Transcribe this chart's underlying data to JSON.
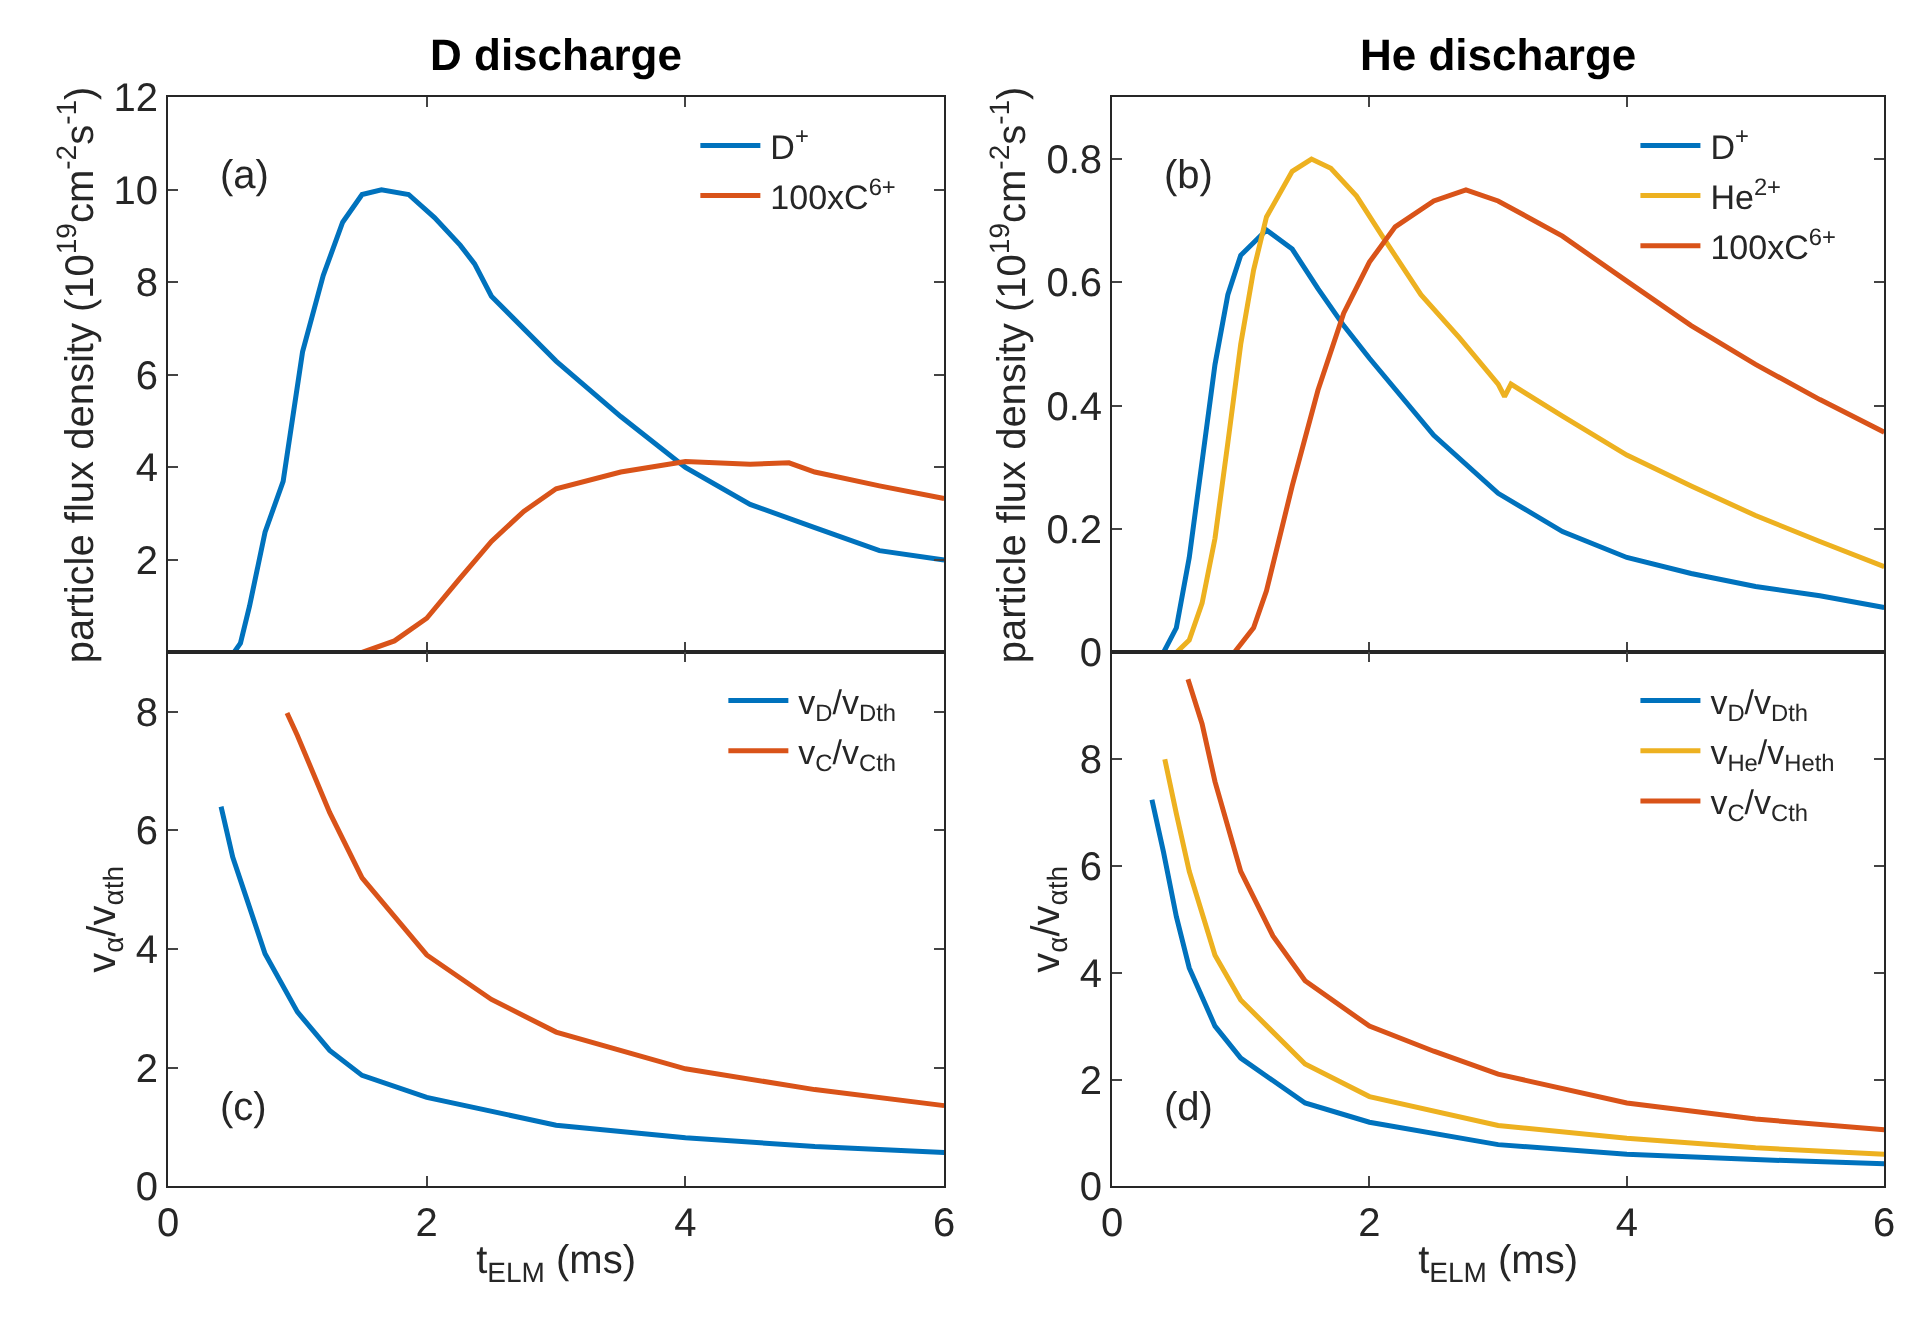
{
  "chart_data": [
    {
      "type": "line",
      "title": "D discharge",
      "ylabel": "particle flux density (10$^{19}$cm$^{-2}$s$^{-1}$)",
      "annotations": [
        "(a)"
      ],
      "xlim": [
        0,
        6
      ],
      "xticks": [
        0,
        2,
        4,
        6
      ],
      "ylim": [
        0,
        12
      ],
      "yticks": [
        2,
        4,
        6,
        8,
        10,
        12
      ],
      "tick_labels": "y",
      "legend": "top right",
      "series": [
        {
          "name": "D$^{+}$",
          "color": "#0072bd",
          "x": [
            0,
            0.51,
            0.56,
            0.63,
            0.75,
            0.89,
            1.04,
            1.2,
            1.35,
            1.5,
            1.65,
            1.86,
            2.06,
            2.26,
            2.37,
            2.5,
            3.0,
            3.5,
            4.0,
            4.5,
            5.0,
            5.5,
            6.0
          ],
          "values": [
            0,
            0,
            0.2,
            1.0,
            2.6,
            3.7,
            6.5,
            8.15,
            9.3,
            9.9,
            10.0,
            9.9,
            9.4,
            8.8,
            8.4,
            7.7,
            6.3,
            5.1,
            4.0,
            3.2,
            2.7,
            2.2,
            2.0
          ]
        },
        {
          "name": "100xC$^{6+}$",
          "color": "#d95319",
          "x": [
            0,
            1.5,
            1.75,
            2.0,
            2.25,
            2.5,
            2.75,
            3.0,
            3.5,
            4.0,
            4.5,
            4.8,
            5.0,
            5.5,
            6.0
          ],
          "values": [
            0,
            0,
            0.25,
            0.74,
            1.58,
            2.4,
            3.05,
            3.54,
            3.9,
            4.13,
            4.07,
            4.1,
            3.9,
            3.6,
            3.33
          ]
        }
      ]
    },
    {
      "type": "line",
      "title": "He discharge",
      "ylabel": "particle flux density (10$^{19}$cm$^{-2}$s$^{-1}$)",
      "annotations": [
        "(b)"
      ],
      "xlim": [
        0,
        6
      ],
      "xticks": [
        0,
        2,
        4,
        6
      ],
      "ylim": [
        0,
        0.9
      ],
      "yticks": [
        0,
        0.2,
        0.4,
        0.6,
        0.8
      ],
      "tick_labels": "y",
      "legend": "top right",
      "series": [
        {
          "name": "D$^{+}$",
          "color": "#0072bd",
          "x": [
            0,
            0.4,
            0.5,
            0.6,
            0.7,
            0.8,
            0.9,
            1.0,
            1.2,
            1.4,
            1.6,
            1.8,
            2.0,
            2.5,
            3.0,
            3.5,
            4.0,
            4.5,
            5.0,
            5.5,
            6.0
          ],
          "values": [
            0,
            0,
            0.04,
            0.154,
            0.31,
            0.467,
            0.58,
            0.644,
            0.685,
            0.654,
            0.59,
            0.53,
            0.477,
            0.352,
            0.258,
            0.196,
            0.154,
            0.128,
            0.107,
            0.092,
            0.073
          ]
        },
        {
          "name": "He$^{2+}$",
          "color": "#edb120",
          "x": [
            0,
            0.5,
            0.6,
            0.7,
            0.8,
            0.9,
            1.0,
            1.1,
            1.2,
            1.4,
            1.55,
            1.7,
            1.9,
            2.1,
            2.4,
            2.7,
            3.0,
            3.05,
            3.1,
            3.5,
            4.0,
            4.5,
            5.0,
            5.5,
            6.0
          ],
          "values": [
            0,
            0,
            0.02,
            0.08,
            0.185,
            0.34,
            0.5,
            0.62,
            0.706,
            0.78,
            0.8,
            0.785,
            0.74,
            0.675,
            0.58,
            0.51,
            0.435,
            0.415,
            0.435,
            0.383,
            0.32,
            0.27,
            0.222,
            0.18,
            0.139
          ]
        },
        {
          "name": "100xC$^{6+}$",
          "color": "#d95319",
          "x": [
            0,
            0.95,
            1.1,
            1.2,
            1.4,
            1.6,
            1.8,
            2.0,
            2.2,
            2.5,
            2.75,
            3.0,
            3.5,
            4.0,
            4.5,
            5.0,
            5.5,
            6.0
          ],
          "values": [
            0,
            0,
            0.04,
            0.1,
            0.27,
            0.425,
            0.55,
            0.633,
            0.69,
            0.732,
            0.75,
            0.732,
            0.675,
            0.602,
            0.53,
            0.467,
            0.41,
            0.357
          ]
        }
      ]
    },
    {
      "type": "line",
      "xlabel": "t$_{ELM}$ (ms)",
      "ylabel": "v$_{α}$/v$_{αth}$",
      "annotations": [
        "(c)"
      ],
      "xlim": [
        0,
        6
      ],
      "xticks": [
        0,
        2,
        4,
        6
      ],
      "ylim": [
        0,
        9
      ],
      "yticks": [
        0,
        2,
        4,
        6,
        8
      ],
      "legend": "top right",
      "series": [
        {
          "name": "v$_{D}$/v$_{Dth}$",
          "color": "#0072bd",
          "x": [
            0.41,
            0.5,
            0.6,
            0.75,
            1.0,
            1.25,
            1.5,
            2.0,
            3.0,
            4.0,
            5.0,
            6.0
          ],
          "values": [
            6.4,
            5.55,
            4.9,
            3.92,
            2.94,
            2.29,
            1.87,
            1.5,
            1.03,
            0.82,
            0.67,
            0.57
          ]
        },
        {
          "name": "v$_{C}$/v$_{Cth}$",
          "color": "#d95319",
          "x": [
            0.92,
            1.0,
            1.25,
            1.5,
            2.0,
            2.5,
            3.0,
            4.0,
            5.0,
            6.0
          ],
          "values": [
            7.98,
            7.6,
            6.3,
            5.2,
            3.9,
            3.15,
            2.6,
            1.98,
            1.63,
            1.36
          ]
        }
      ]
    },
    {
      "type": "line",
      "xlabel": "t$_{ELM}$ (ms)",
      "ylabel": "v$_{α}$/v$_{αth}$",
      "annotations": [
        "(d)"
      ],
      "xlim": [
        0,
        6
      ],
      "xticks": [
        0,
        2,
        4,
        6
      ],
      "ylim": [
        0,
        10
      ],
      "yticks": [
        0,
        2,
        4,
        6,
        8
      ],
      "legend": "top right",
      "series": [
        {
          "name": "v$_{D}$/v$_{Dth}$",
          "color": "#0072bd",
          "x": [
            0.31,
            0.4,
            0.5,
            0.6,
            0.8,
            1.0,
            1.5,
            2.0,
            3.0,
            4.0,
            5.0,
            6.0
          ],
          "values": [
            7.24,
            6.26,
            5.05,
            4.09,
            3.0,
            2.4,
            1.56,
            1.2,
            0.78,
            0.6,
            0.5,
            0.42
          ]
        },
        {
          "name": "v$_{He}$/v$_{Heth}$",
          "color": "#edb120",
          "x": [
            0.41,
            0.5,
            0.6,
            0.8,
            1.0,
            1.5,
            2.0,
            3.0,
            4.0,
            5.0,
            6.0
          ],
          "values": [
            8.0,
            6.98,
            5.9,
            4.33,
            3.49,
            2.29,
            1.68,
            1.14,
            0.9,
            0.72,
            0.6
          ]
        },
        {
          "name": "v$_{C}$/v$_{Cth}$",
          "color": "#d95319",
          "x": [
            0.59,
            0.7,
            0.8,
            1.0,
            1.25,
            1.5,
            2.0,
            2.5,
            3.0,
            4.0,
            5.0,
            6.0
          ],
          "values": [
            9.5,
            8.66,
            7.58,
            5.9,
            4.69,
            3.85,
            3.0,
            2.53,
            2.1,
            1.56,
            1.26,
            1.06
          ]
        }
      ]
    }
  ]
}
